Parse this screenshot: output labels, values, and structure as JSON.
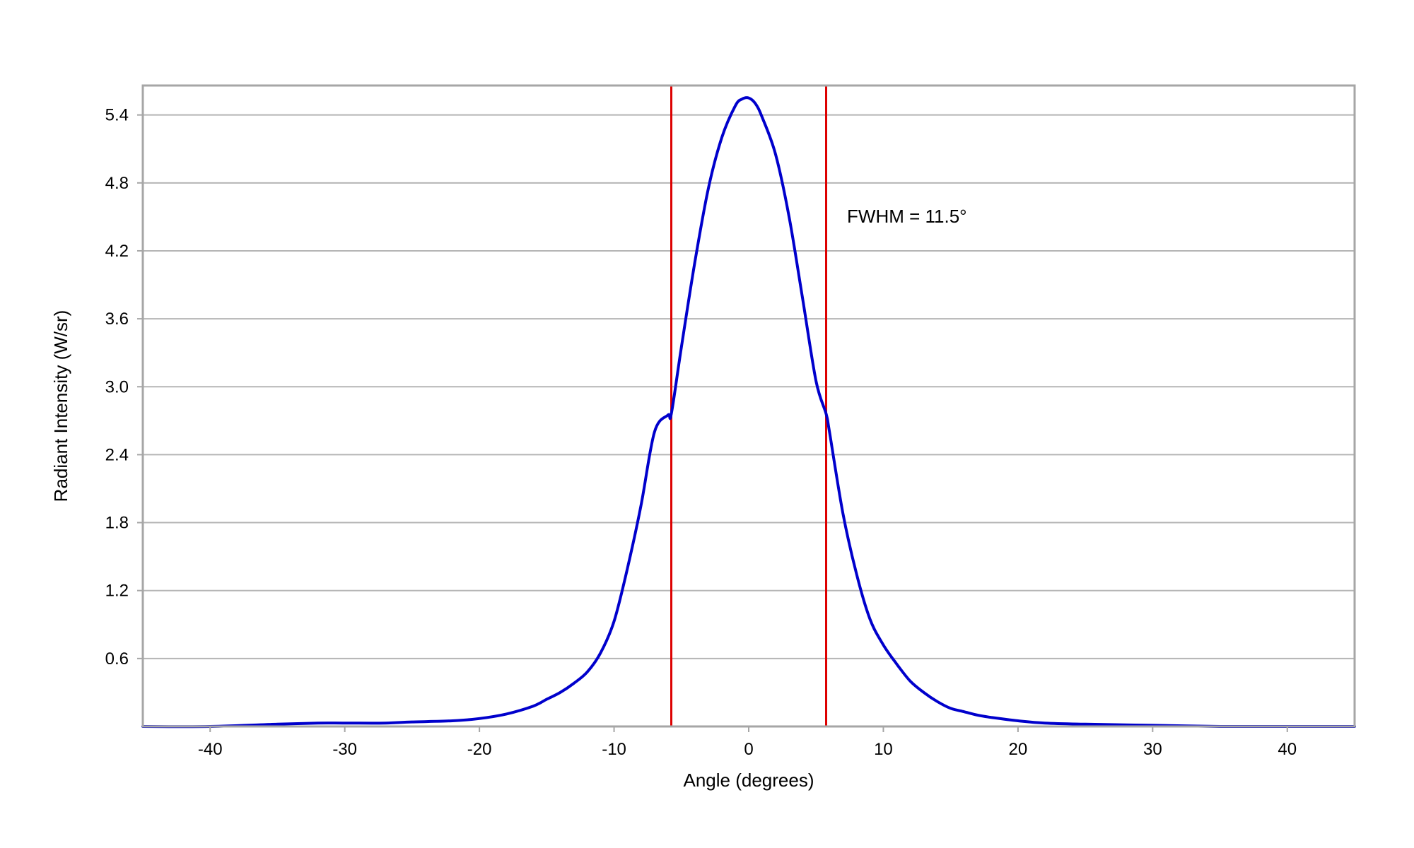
{
  "chart_data": {
    "type": "line",
    "title": "",
    "xlabel": "Angle (degrees)",
    "ylabel": "Radiant Intensity (W/sr)",
    "xlim": [
      -45,
      45
    ],
    "ylim": [
      0,
      5.66
    ],
    "x_ticks": [
      -40,
      -30,
      -20,
      -10,
      0,
      10,
      20,
      30,
      40
    ],
    "y_ticks": [
      0.6,
      1.2,
      1.8,
      2.4,
      3.0,
      3.6,
      4.2,
      4.8,
      5.4
    ],
    "y_tick_labels": [
      "0.6",
      "1.2",
      "1.8",
      "2.4",
      "3.0",
      "3.6",
      "4.2",
      "4.8",
      "5.4"
    ],
    "grid": "horizontal",
    "series": [
      {
        "color": "#0000cc",
        "x": [
          -45,
          -40,
          -35,
          -32,
          -30,
          -27,
          -25,
          -22,
          -20,
          -18,
          -16,
          -15,
          -14,
          -13,
          -12,
          -11,
          -10,
          -9,
          -8,
          -7,
          -6,
          -5.75,
          -5,
          -4,
          -3,
          -2,
          -1,
          -0.5,
          0,
          0.5,
          1,
          2,
          3,
          4,
          5,
          5.75,
          6,
          7,
          8,
          9,
          10,
          11,
          12,
          13,
          14,
          15,
          16,
          17,
          18,
          20,
          22,
          25,
          30,
          35,
          40,
          45
        ],
        "y": [
          0.0,
          0.0,
          0.02,
          0.03,
          0.03,
          0.03,
          0.04,
          0.05,
          0.07,
          0.11,
          0.18,
          0.24,
          0.3,
          0.38,
          0.48,
          0.65,
          0.93,
          1.4,
          1.95,
          2.6,
          2.75,
          2.76,
          3.35,
          4.1,
          4.75,
          5.2,
          5.48,
          5.54,
          5.55,
          5.5,
          5.38,
          5.05,
          4.5,
          3.78,
          3.05,
          2.76,
          2.6,
          1.88,
          1.35,
          0.95,
          0.72,
          0.55,
          0.4,
          0.3,
          0.22,
          0.16,
          0.13,
          0.1,
          0.08,
          0.05,
          0.03,
          0.02,
          0.01,
          0.0,
          0.0,
          0.0
        ]
      }
    ],
    "vertical_markers": [
      {
        "x": -5.75,
        "color": "#dd0000"
      },
      {
        "x": 5.75,
        "color": "#dd0000"
      }
    ],
    "annotations": [
      {
        "text": "FWHM = 11.5°",
        "x": 7.3,
        "y": 4.45
      }
    ]
  }
}
